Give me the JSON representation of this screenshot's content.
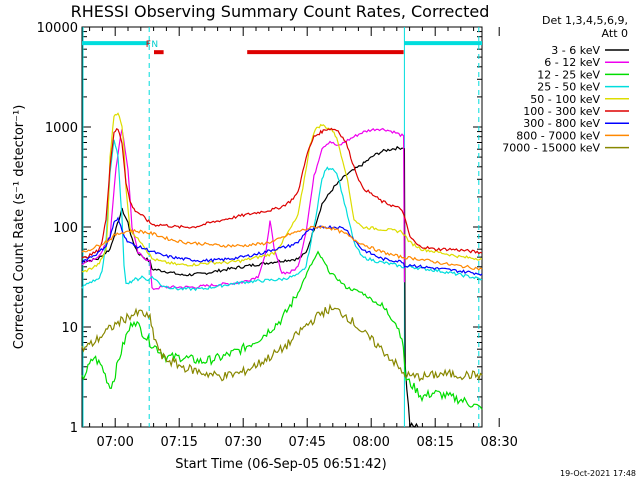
{
  "chart_data": {
    "type": "line",
    "title": "RHESSI Observing Summary Count Rates, Corrected",
    "xlabel": "Start Time (06-Sep-05 06:51:42)",
    "ylabel": "Corrected Count Rate (s⁻¹ detector⁻¹)",
    "yscale": "log",
    "ylim": [
      1,
      10000
    ],
    "xlim": [
      0,
      100
    ],
    "x_ticks": [
      {
        "x": 8.3,
        "label": "07:00"
      },
      {
        "x": 24.3,
        "label": "07:15"
      },
      {
        "x": 40.3,
        "label": "07:30"
      },
      {
        "x": 56.3,
        "label": "07:45"
      },
      {
        "x": 72.3,
        "label": "08:00"
      },
      {
        "x": 88.3,
        "label": "08:15"
      },
      {
        "x": 104.3,
        "label": "08:30"
      }
    ],
    "y_ticks": [
      {
        "y": 1,
        "label": "1"
      },
      {
        "y": 10,
        "label": "10"
      },
      {
        "y": 100,
        "label": "100"
      },
      {
        "y": 1000,
        "label": "1000"
      },
      {
        "y": 10000,
        "label": "10000"
      }
    ],
    "legend_header": [
      "Det 1,3,4,5,6,9,",
      "Att 0"
    ],
    "legend_position": "right",
    "footer_date": "19-Oct-2021 17:48",
    "markers": [
      {
        "label": "F",
        "color": "#dd0000",
        "x": 16.6
      },
      {
        "label": "N",
        "color": "#00cccc",
        "x": 18.2
      }
    ],
    "bars": [
      {
        "name": "night",
        "color": "#00dddd",
        "ranges": [
          [
            0,
            16.8
          ],
          [
            80.6,
            100
          ]
        ],
        "y": 6900
      },
      {
        "name": "flare",
        "color": "#dd0000",
        "ranges": [
          [
            18.0,
            20.4
          ],
          [
            41.3,
            80.4
          ]
        ],
        "y": 5600
      }
    ],
    "vlines": [
      {
        "x": 16.8,
        "color": "#00dddd",
        "style": "dashed"
      },
      {
        "x": 80.6,
        "color": "#00dddd",
        "style": "solid"
      },
      {
        "x": 99.2,
        "color": "#00dddd",
        "style": "dashed"
      }
    ],
    "series": [
      {
        "name": "3 - 6 keV",
        "color": "#000000",
        "x": [
          0,
          4,
          7,
          8.5,
          10,
          11.5,
          12.5,
          14,
          17,
          17.5,
          21,
          25,
          30,
          35,
          40,
          45,
          50,
          54,
          56,
          58,
          60,
          63,
          66,
          70,
          73,
          75,
          78,
          80,
          80.6,
          80.8,
          82,
          84
        ],
        "values": [
          45,
          48,
          60,
          95,
          150,
          110,
          75,
          55,
          45,
          38,
          36,
          33,
          34,
          37,
          40,
          43,
          46,
          48,
          55,
          95,
          170,
          250,
          330,
          420,
          520,
          570,
          610,
          620,
          620,
          4,
          1,
          1
        ]
      },
      {
        "name": "6 - 12 keV",
        "color": "#ee00ee",
        "x": [
          0,
          4,
          7,
          8.5,
          10,
          11.5,
          12.5,
          14,
          17,
          17.5,
          20,
          24,
          28,
          32,
          36,
          40,
          44,
          46,
          47,
          48,
          50,
          52,
          54,
          56,
          58,
          60,
          62,
          64,
          66,
          68,
          70,
          72,
          74,
          76,
          78,
          80,
          80.4,
          80.6
        ],
        "values": [
          43,
          50,
          80,
          400,
          980,
          380,
          100,
          55,
          45,
          24,
          25,
          25,
          25,
          26,
          27,
          28,
          32,
          55,
          120,
          60,
          35,
          35,
          40,
          90,
          320,
          620,
          720,
          640,
          720,
          800,
          880,
          930,
          960,
          940,
          890,
          820,
          800,
          28
        ]
      },
      {
        "name": "12 - 25 keV",
        "color": "#00dd00",
        "x": [
          0,
          3,
          5,
          7,
          8,
          9,
          11,
          13,
          15,
          17,
          19,
          21,
          25,
          30,
          35,
          40,
          45,
          50,
          54,
          57,
          59,
          60,
          62,
          64,
          66,
          70,
          75,
          78,
          80,
          81,
          83,
          85,
          88,
          92,
          96,
          100
        ],
        "values": [
          3,
          5,
          4,
          2.5,
          3,
          4.5,
          8,
          12,
          9,
          7,
          6,
          5,
          5,
          4.5,
          5,
          6,
          8,
          12,
          22,
          40,
          55,
          48,
          35,
          30,
          25,
          22,
          16,
          12,
          8,
          3,
          2.5,
          2,
          2.2,
          2,
          1.8,
          1.5
        ]
      },
      {
        "name": "25 - 50 keV",
        "color": "#00dddd",
        "x": [
          0,
          2,
          4,
          5,
          6,
          7,
          8,
          9,
          10,
          10.5,
          11,
          12,
          13,
          14,
          15,
          16,
          16.5,
          17,
          17.5,
          20,
          24,
          30,
          35,
          40,
          45,
          50,
          54,
          56,
          58,
          60,
          61,
          62,
          63,
          64,
          66,
          68,
          70,
          74,
          78,
          80,
          82,
          86,
          90,
          95,
          100
        ],
        "values": [
          25,
          28,
          30,
          35,
          70,
          350,
          750,
          500,
          120,
          40,
          28,
          28,
          30,
          30,
          32,
          30,
          30,
          30,
          32,
          26,
          24,
          24,
          26,
          28,
          29,
          30,
          33,
          40,
          100,
          300,
          380,
          390,
          380,
          320,
          150,
          70,
          50,
          45,
          42,
          40,
          40,
          38,
          36,
          33,
          30
        ]
      },
      {
        "name": "50 - 100 keV",
        "color": "#dddd00",
        "x": [
          0,
          2,
          4,
          5,
          6,
          6.5,
          7,
          8,
          9,
          10,
          10.5,
          11,
          12,
          13,
          14,
          15,
          16,
          17,
          17.5,
          20,
          24,
          28,
          32,
          36,
          40,
          44,
          46,
          48,
          50,
          52,
          54,
          56,
          57,
          58,
          59,
          60,
          61,
          62,
          63,
          64,
          66,
          68,
          70,
          75,
          80,
          82,
          85,
          90,
          95,
          100
        ],
        "values": [
          35,
          38,
          42,
          48,
          60,
          120,
          500,
          1300,
          1400,
          1000,
          600,
          250,
          95,
          85,
          75,
          70,
          60,
          52,
          48,
          45,
          42,
          42,
          44,
          44,
          46,
          50,
          52,
          55,
          70,
          95,
          130,
          380,
          650,
          900,
          1000,
          1050,
          1000,
          950,
          900,
          700,
          350,
          120,
          100,
          95,
          90,
          70,
          60,
          55,
          50,
          48
        ]
      },
      {
        "name": "100 - 300 keV",
        "color": "#dd0000",
        "x": [
          0,
          2,
          4,
          5,
          6,
          7,
          8,
          9,
          10,
          11,
          12,
          13,
          14,
          15,
          16,
          17,
          18,
          20,
          24,
          28,
          32,
          36,
          40,
          44,
          46,
          48,
          50,
          52,
          54,
          56,
          58,
          59,
          60,
          61,
          62,
          63,
          64,
          66,
          68,
          70,
          75,
          80,
          82,
          84,
          88,
          92,
          96,
          100
        ],
        "values": [
          48,
          52,
          58,
          70,
          120,
          400,
          900,
          950,
          700,
          280,
          180,
          150,
          140,
          130,
          120,
          110,
          105,
          105,
          100,
          100,
          110,
          120,
          130,
          140,
          145,
          150,
          160,
          180,
          220,
          500,
          800,
          850,
          900,
          950,
          960,
          950,
          920,
          700,
          400,
          250,
          180,
          150,
          80,
          65,
          60,
          60,
          58,
          55
        ]
      },
      {
        "name": "300 - 800 keV",
        "color": "#0000ff",
        "x": [
          0,
          4,
          6,
          7,
          8,
          9,
          10,
          11,
          12,
          13,
          15,
          17,
          20,
          25,
          30,
          35,
          40,
          45,
          48,
          50,
          52,
          54,
          56,
          60,
          64,
          66,
          68,
          70,
          75,
          80,
          80.4,
          80.6,
          82,
          85,
          90,
          95,
          100
        ],
        "values": [
          45,
          55,
          65,
          80,
          110,
          120,
          95,
          75,
          70,
          65,
          62,
          58,
          52,
          48,
          46,
          47,
          50,
          55,
          60,
          62,
          65,
          70,
          90,
          100,
          100,
          95,
          75,
          60,
          48,
          45,
          45,
          40,
          42,
          40,
          38,
          36,
          34
        ]
      },
      {
        "name": "800 - 7000 keV",
        "color": "#ff8800",
        "x": [
          0,
          4,
          7,
          8,
          10,
          12,
          15,
          18,
          22,
          26,
          30,
          35,
          40,
          45,
          48,
          50,
          52,
          54,
          56,
          58,
          60,
          62,
          64,
          66,
          68,
          70,
          74,
          78,
          80,
          84,
          88,
          92,
          96,
          100
        ],
        "values": [
          55,
          65,
          75,
          82,
          88,
          92,
          90,
          85,
          75,
          70,
          68,
          65,
          65,
          68,
          72,
          78,
          85,
          90,
          95,
          100,
          100,
          98,
          92,
          85,
          75,
          68,
          58,
          52,
          50,
          48,
          45,
          42,
          40,
          38
        ]
      },
      {
        "name": "7000 - 15000 keV",
        "color": "#888800",
        "x": [
          0,
          3,
          6,
          9,
          12,
          15,
          17,
          18,
          20,
          25,
          30,
          35,
          40,
          45,
          50,
          52,
          55,
          58,
          60,
          62,
          64,
          66,
          68,
          70,
          74,
          78,
          80,
          82,
          86,
          90,
          95,
          100
        ],
        "values": [
          6,
          7,
          9,
          11,
          13,
          14,
          12,
          8,
          5,
          4,
          3.5,
          3.2,
          3.5,
          4.5,
          6,
          7,
          9.5,
          12,
          14,
          15,
          14.5,
          13,
          11,
          9,
          6.5,
          4.5,
          3.5,
          3.2,
          3.2,
          3.4,
          3.3,
          3.3
        ]
      }
    ]
  }
}
